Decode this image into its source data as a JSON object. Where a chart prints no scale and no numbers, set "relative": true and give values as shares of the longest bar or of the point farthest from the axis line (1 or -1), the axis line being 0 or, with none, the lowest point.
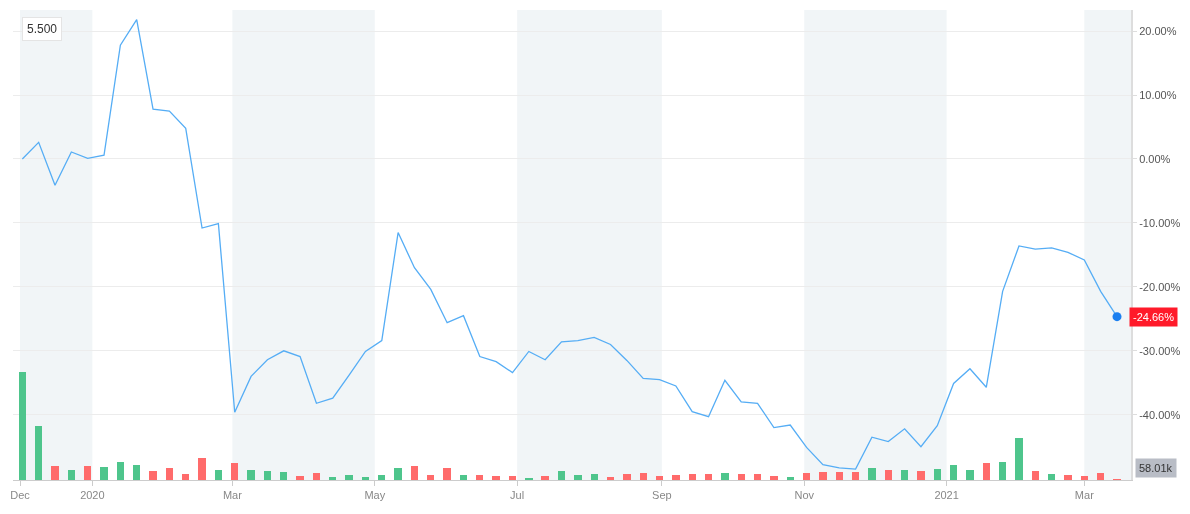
{
  "chart_data": [
    {
      "type": "line",
      "x": [
        "2019-12-02",
        "2019-12-09",
        "2019-12-16",
        "2019-12-23",
        "2019-12-30",
        "2020-01-06",
        "2020-01-13",
        "2020-01-20",
        "2020-01-27",
        "2020-02-03",
        "2020-02-10",
        "2020-02-17",
        "2020-02-24",
        "2020-03-02",
        "2020-03-09",
        "2020-03-16",
        "2020-03-23",
        "2020-03-30",
        "2020-04-06",
        "2020-04-13",
        "2020-04-20",
        "2020-04-27",
        "2020-05-04",
        "2020-05-11",
        "2020-05-18",
        "2020-05-25",
        "2020-06-01",
        "2020-06-08",
        "2020-06-15",
        "2020-06-22",
        "2020-06-29",
        "2020-07-06",
        "2020-07-13",
        "2020-07-20",
        "2020-07-27",
        "2020-08-03",
        "2020-08-10",
        "2020-08-17",
        "2020-08-24",
        "2020-08-31",
        "2020-09-07",
        "2020-09-14",
        "2020-09-21",
        "2020-09-28",
        "2020-10-05",
        "2020-10-12",
        "2020-10-19",
        "2020-10-26",
        "2020-11-02",
        "2020-11-09",
        "2020-11-16",
        "2020-11-23",
        "2020-11-30",
        "2020-12-07",
        "2020-12-14",
        "2020-12-21",
        "2020-12-28",
        "2021-01-04",
        "2021-01-11",
        "2021-01-18",
        "2021-01-25",
        "2021-02-01",
        "2021-02-08",
        "2021-02-15",
        "2021-02-22",
        "2021-03-01",
        "2021-03-08",
        "2021-03-15"
      ],
      "series": [
        {
          "color": "#55adf5",
          "values": [
            0,
            2.6,
            -4.1,
            1.1,
            0.1,
            0.6,
            17.8,
            21.8,
            7.8,
            7.5,
            4.8,
            -10.8,
            -10.1,
            -39.6,
            -34.0,
            -31.4,
            -30.0,
            -30.9,
            -38.2,
            -37.4,
            -33.8,
            -30.1,
            -28.4,
            -11.5,
            -17.0,
            -20.4,
            -25.6,
            -24.5,
            -30.9,
            -31.7,
            -33.4,
            -30.1,
            -31.4,
            -28.6,
            -28.4,
            -27.9,
            -29.0,
            -31.5,
            -34.3,
            -34.5,
            -35.5,
            -39.5,
            -40.3,
            -34.6,
            -38.0,
            -38.2,
            -42.0,
            -41.6,
            -45.1,
            -47.8,
            -48.3,
            -48.5,
            -43.5,
            -44.2,
            -42.2,
            -45.0,
            -41.7,
            -35.1,
            -32.8,
            -35.7,
            -20.7,
            -13.6,
            -14.1,
            -13.9,
            -14.6,
            -15.8,
            -20.7,
            -24.66
          ]
        },
        {
          "type": "scatter",
          "marker": "circle",
          "color": "#1a7ff0",
          "x": [
            "2021-03-15"
          ],
          "values": [
            -24.66
          ]
        }
      ],
      "xlim": [
        "2019-11-28",
        "2021-03-21"
      ],
      "xticks": [
        {
          "value": "2019-12-01",
          "label": "Dec"
        },
        {
          "value": "2020-01-01",
          "label": "2020"
        },
        {
          "value": "2020-03-01",
          "label": "Mar"
        },
        {
          "value": "2020-05-01",
          "label": "May"
        },
        {
          "value": "2020-07-01",
          "label": "Jul"
        },
        {
          "value": "2020-09-01",
          "label": "Sep"
        },
        {
          "value": "2020-11-01",
          "label": "Nov"
        },
        {
          "value": "2021-01-01",
          "label": "2021"
        },
        {
          "value": "2021-03-01",
          "label": "Mar"
        }
      ],
      "ylim": [
        -50.2,
        23.3
      ],
      "yticks": [
        {
          "value": -40,
          "label": "-40.00%"
        },
        {
          "value": -30,
          "label": "-30.00%"
        },
        {
          "value": -20,
          "label": "-20.00%"
        },
        {
          "value": -10,
          "label": "-10.00%"
        },
        {
          "value": 0,
          "label": "0.00%"
        },
        {
          "value": 10,
          "label": "10.00%"
        },
        {
          "value": 20,
          "label": "20.00%"
        }
      ],
      "grid": "y",
      "bands": [
        {
          "axis": "x",
          "from": "2019-12-01",
          "to": "2020-01-01",
          "color": "#f1f5f7"
        },
        {
          "axis": "x",
          "from": "2020-03-01",
          "to": "2020-05-01",
          "color": "#f1f5f7"
        },
        {
          "axis": "x",
          "from": "2020-07-01",
          "to": "2020-09-01",
          "color": "#f1f5f7"
        },
        {
          "axis": "x",
          "from": "2020-11-01",
          "to": "2021-01-01",
          "color": "#f1f5f7"
        },
        {
          "axis": "x",
          "from": "2021-03-01",
          "to": "2021-03-21",
          "color": "#f1f5f7"
        }
      ],
      "annotations": [
        "5.500",
        {
          "text": "-24.66%",
          "x": "2021-03-15",
          "y": -24.66
        }
      ]
    },
    {
      "type": "bar",
      "relative": true,
      "x": [
        "2019-12-02",
        "2019-12-09",
        "2019-12-16",
        "2019-12-23",
        "2019-12-30",
        "2020-01-06",
        "2020-01-13",
        "2020-01-20",
        "2020-01-27",
        "2020-02-03",
        "2020-02-10",
        "2020-02-17",
        "2020-02-24",
        "2020-03-02",
        "2020-03-09",
        "2020-03-16",
        "2020-03-23",
        "2020-03-30",
        "2020-04-06",
        "2020-04-13",
        "2020-04-20",
        "2020-04-27",
        "2020-05-04",
        "2020-05-11",
        "2020-05-18",
        "2020-05-25",
        "2020-06-01",
        "2020-06-08",
        "2020-06-15",
        "2020-06-22",
        "2020-06-29",
        "2020-07-06",
        "2020-07-13",
        "2020-07-20",
        "2020-07-27",
        "2020-08-03",
        "2020-08-10",
        "2020-08-17",
        "2020-08-24",
        "2020-08-31",
        "2020-09-07",
        "2020-09-14",
        "2020-09-21",
        "2020-09-28",
        "2020-10-05",
        "2020-10-12",
        "2020-10-19",
        "2020-10-26",
        "2020-11-02",
        "2020-11-09",
        "2020-11-16",
        "2020-11-23",
        "2020-11-30",
        "2020-12-07",
        "2020-12-14",
        "2020-12-21",
        "2020-12-28",
        "2021-01-04",
        "2021-01-11",
        "2021-01-18",
        "2021-01-25",
        "2021-02-01",
        "2021-02-08",
        "2021-02-15",
        "2021-02-22",
        "2021-03-01",
        "2021-03-08",
        "2021-03-15"
      ],
      "values": [
        1.0,
        0.5,
        0.13,
        0.093,
        0.13,
        0.12,
        0.17,
        0.14,
        0.086,
        0.11,
        0.057,
        0.2,
        0.093,
        0.16,
        0.093,
        0.082,
        0.075,
        0.04,
        0.064,
        0.03,
        0.046,
        0.03,
        0.046,
        0.11,
        0.13,
        0.046,
        0.11,
        0.046,
        0.046,
        0.04,
        0.04,
        0.018,
        0.04,
        0.082,
        0.046,
        0.057,
        0.029,
        0.057,
        0.064,
        0.039,
        0.046,
        0.057,
        0.057,
        0.064,
        0.057,
        0.057,
        0.039,
        0.029,
        0.064,
        0.075,
        0.075,
        0.075,
        0.114,
        0.093,
        0.093,
        0.086,
        0.104,
        0.143,
        0.093,
        0.16,
        0.168,
        0.39,
        0.086,
        0.057,
        0.046,
        0.039,
        0.068,
        0.007
      ],
      "colors": [
        "#4ec58c",
        "#4ec58c",
        "#ff6b6b",
        "#4ec58c",
        "#ff6b6b",
        "#4ec58c",
        "#4ec58c",
        "#4ec58c",
        "#ff6b6b",
        "#ff6b6b",
        "#ff6b6b",
        "#ff6b6b",
        "#4ec58c",
        "#ff6b6b",
        "#4ec58c",
        "#4ec58c",
        "#4ec58c",
        "#ff6b6b",
        "#ff6b6b",
        "#4ec58c",
        "#4ec58c",
        "#4ec58c",
        "#4ec58c",
        "#4ec58c",
        "#ff6b6b",
        "#ff6b6b",
        "#ff6b6b",
        "#4ec58c",
        "#ff6b6b",
        "#ff6b6b",
        "#ff6b6b",
        "#4ec58c",
        "#ff6b6b",
        "#4ec58c",
        "#4ec58c",
        "#4ec58c",
        "#ff6b6b",
        "#ff6b6b",
        "#ff6b6b",
        "#ff6b6b",
        "#ff6b6b",
        "#ff6b6b",
        "#ff6b6b",
        "#4ec58c",
        "#ff6b6b",
        "#ff6b6b",
        "#ff6b6b",
        "#4ec58c",
        "#ff6b6b",
        "#ff6b6b",
        "#ff6b6b",
        "#ff6b6b",
        "#4ec58c",
        "#ff6b6b",
        "#4ec58c",
        "#ff6b6b",
        "#4ec58c",
        "#4ec58c",
        "#4ec58c",
        "#ff6b6b",
        "#4ec58c",
        "#4ec58c",
        "#ff6b6b",
        "#4ec58c",
        "#ff6b6b",
        "#ff6b6b",
        "#ff6b6b",
        "#ff6b6b"
      ],
      "annotations": [
        "58.01k"
      ],
      "xlim": [
        "2019-11-28",
        "2021-03-21"
      ],
      "tick_labels": false
    }
  ]
}
